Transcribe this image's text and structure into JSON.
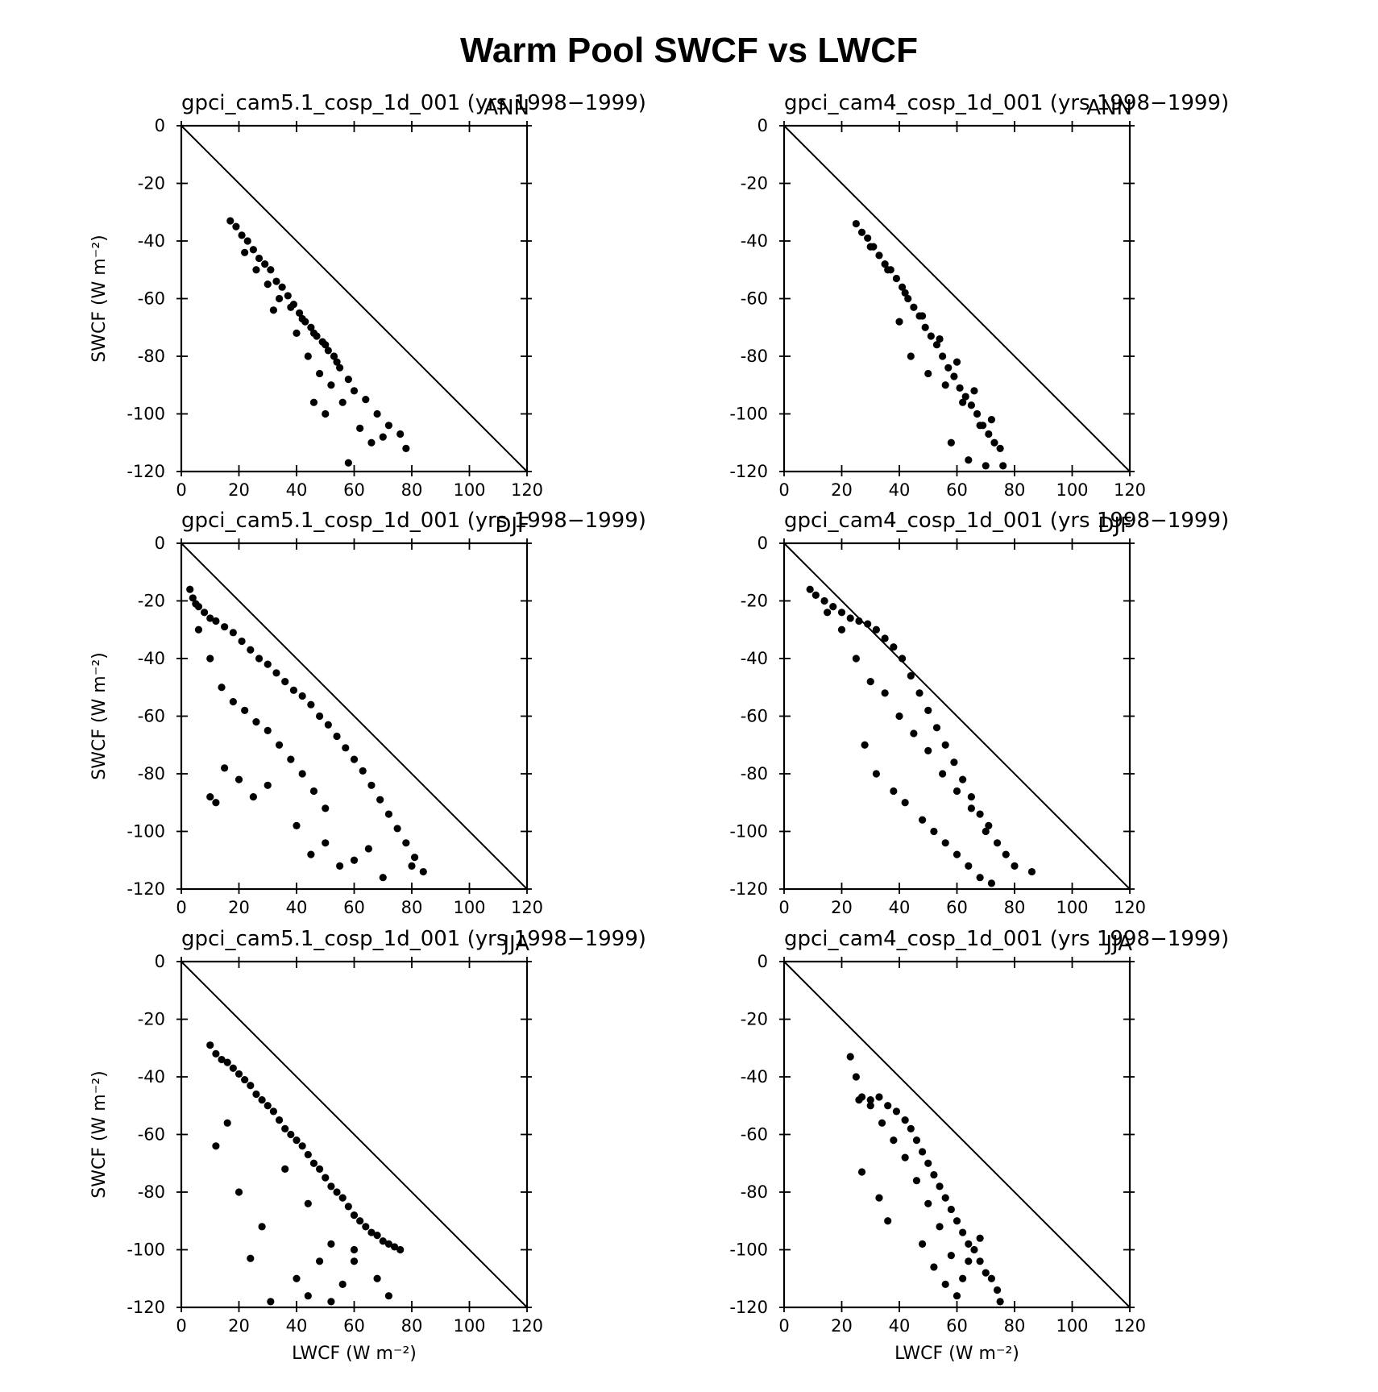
{
  "title": "Warm Pool SWCF vs LWCF",
  "chart_data": [
    {
      "type": "scatter",
      "title": "gpci_cam5.1_cosp_1d_001 (yrs 1998−1999)",
      "season": "ANN",
      "ylabel": "SWCF (W m⁻²)",
      "xlim": [
        0,
        120
      ],
      "ylim": [
        -120,
        0
      ],
      "xticks": [
        0,
        20,
        40,
        60,
        80,
        100,
        120
      ],
      "yticks": [
        0,
        -20,
        -40,
        -60,
        -80,
        -100,
        -120
      ],
      "color": "#000000",
      "x": [
        17,
        19,
        21,
        23,
        25,
        27,
        29,
        31,
        33,
        35,
        37,
        39,
        41,
        43,
        45,
        47,
        49,
        51,
        53,
        55,
        22,
        26,
        30,
        34,
        38,
        42,
        46,
        50,
        54,
        58,
        32,
        40,
        44,
        48,
        52,
        56,
        60,
        64,
        68,
        72,
        76,
        78,
        46,
        50,
        62,
        66,
        70,
        58
      ],
      "y": [
        -33,
        -35,
        -38,
        -40,
        -43,
        -46,
        -48,
        -50,
        -54,
        -56,
        -59,
        -62,
        -65,
        -68,
        -70,
        -73,
        -75,
        -78,
        -80,
        -84,
        -44,
        -50,
        -55,
        -60,
        -63,
        -67,
        -72,
        -76,
        -82,
        -88,
        -64,
        -72,
        -80,
        -86,
        -90,
        -96,
        -92,
        -95,
        -100,
        -104,
        -107,
        -112,
        -96,
        -100,
        -105,
        -110,
        -108,
        -117
      ]
    },
    {
      "type": "scatter",
      "title": "gpci_cam4_cosp_1d_001 (yrs 1998−1999)",
      "season": "ANN",
      "xlim": [
        0,
        120
      ],
      "ylim": [
        -120,
        0
      ],
      "xticks": [
        0,
        20,
        40,
        60,
        80,
        100,
        120
      ],
      "yticks": [
        0,
        -20,
        -40,
        -60,
        -80,
        -100,
        -120
      ],
      "color": "#000000",
      "x": [
        25,
        27,
        29,
        31,
        33,
        35,
        37,
        39,
        41,
        43,
        45,
        47,
        49,
        51,
        53,
        55,
        57,
        59,
        61,
        63,
        65,
        67,
        69,
        71,
        73,
        75,
        30,
        36,
        42,
        48,
        54,
        60,
        66,
        72,
        40,
        44,
        50,
        56,
        62,
        68,
        58,
        64,
        70,
        76
      ],
      "y": [
        -34,
        -37,
        -39,
        -42,
        -45,
        -48,
        -50,
        -53,
        -56,
        -60,
        -63,
        -66,
        -70,
        -73,
        -76,
        -80,
        -84,
        -87,
        -91,
        -94,
        -97,
        -100,
        -104,
        -107,
        -110,
        -112,
        -42,
        -50,
        -58,
        -66,
        -74,
        -82,
        -92,
        -102,
        -68,
        -80,
        -86,
        -90,
        -96,
        -104,
        -110,
        -116,
        -118,
        -118
      ]
    },
    {
      "type": "scatter",
      "title": "gpci_cam5.1_cosp_1d_001 (yrs 1998−1999)",
      "season": "DJF",
      "ylabel": "SWCF (W m⁻²)",
      "xlim": [
        0,
        120
      ],
      "ylim": [
        -120,
        0
      ],
      "xticks": [
        0,
        20,
        40,
        60,
        80,
        100,
        120
      ],
      "yticks": [
        0,
        -20,
        -40,
        -60,
        -80,
        -100,
        -120
      ],
      "color": "#000000",
      "x": [
        3,
        4,
        5,
        6,
        8,
        10,
        12,
        15,
        18,
        21,
        24,
        27,
        30,
        33,
        36,
        39,
        42,
        45,
        48,
        51,
        54,
        57,
        60,
        63,
        66,
        69,
        72,
        75,
        78,
        81,
        84,
        6,
        10,
        14,
        18,
        22,
        26,
        30,
        34,
        38,
        42,
        46,
        50,
        10,
        12,
        15,
        20,
        25,
        30,
        40,
        45,
        50,
        55,
        60,
        65,
        70,
        80
      ],
      "y": [
        -16,
        -19,
        -21,
        -22,
        -24,
        -26,
        -27,
        -29,
        -31,
        -34,
        -37,
        -40,
        -42,
        -45,
        -48,
        -51,
        -53,
        -56,
        -60,
        -63,
        -67,
        -71,
        -75,
        -79,
        -84,
        -89,
        -94,
        -99,
        -104,
        -109,
        -114,
        -30,
        -40,
        -50,
        -55,
        -58,
        -62,
        -65,
        -70,
        -75,
        -80,
        -86,
        -92,
        -88,
        -90,
        -78,
        -82,
        -88,
        -84,
        -98,
        -108,
        -104,
        -112,
        -110,
        -106,
        -116,
        -112
      ]
    },
    {
      "type": "scatter",
      "title": "gpci_cam4_cosp_1d_001 (yrs 1998−1999)",
      "season": "DJF",
      "xlim": [
        0,
        120
      ],
      "ylim": [
        -120,
        0
      ],
      "xticks": [
        0,
        20,
        40,
        60,
        80,
        100,
        120
      ],
      "yticks": [
        0,
        -20,
        -40,
        -60,
        -80,
        -100,
        -120
      ],
      "color": "#000000",
      "x": [
        9,
        11,
        14,
        17,
        20,
        23,
        26,
        29,
        32,
        35,
        38,
        41,
        44,
        47,
        50,
        53,
        56,
        59,
        62,
        65,
        68,
        71,
        74,
        77,
        80,
        86,
        15,
        20,
        25,
        30,
        35,
        40,
        45,
        50,
        55,
        60,
        65,
        70,
        28,
        32,
        38,
        42,
        48,
        52,
        56,
        60,
        64,
        68,
        72
      ],
      "y": [
        -16,
        -18,
        -20,
        -22,
        -24,
        -26,
        -27,
        -28,
        -30,
        -33,
        -36,
        -40,
        -46,
        -52,
        -58,
        -64,
        -70,
        -76,
        -82,
        -88,
        -94,
        -98,
        -104,
        -108,
        -112,
        -114,
        -24,
        -30,
        -40,
        -48,
        -52,
        -60,
        -66,
        -72,
        -80,
        -86,
        -92,
        -100,
        -70,
        -80,
        -86,
        -90,
        -96,
        -100,
        -104,
        -108,
        -112,
        -116,
        -118
      ]
    },
    {
      "type": "scatter",
      "title": "gpci_cam5.1_cosp_1d_001 (yrs 1998−1999)",
      "season": "JJA",
      "ylabel": "SWCF (W m⁻²)",
      "xlabel": "LWCF (W m⁻²)",
      "xlim": [
        0,
        120
      ],
      "ylim": [
        -120,
        0
      ],
      "xticks": [
        0,
        20,
        40,
        60,
        80,
        100,
        120
      ],
      "yticks": [
        0,
        -20,
        -40,
        -60,
        -80,
        -100,
        -120
      ],
      "color": "#000000",
      "x": [
        10,
        12,
        14,
        16,
        18,
        20,
        22,
        24,
        26,
        28,
        30,
        32,
        34,
        36,
        38,
        40,
        42,
        44,
        46,
        48,
        50,
        52,
        54,
        56,
        58,
        60,
        62,
        64,
        66,
        68,
        70,
        72,
        74,
        76,
        12,
        16,
        20,
        24,
        28,
        36,
        44,
        52,
        60,
        68,
        40,
        44,
        48,
        52,
        56,
        60,
        72,
        31
      ],
      "y": [
        -29,
        -32,
        -34,
        -35,
        -37,
        -39,
        -41,
        -43,
        -46,
        -48,
        -50,
        -52,
        -55,
        -58,
        -60,
        -62,
        -64,
        -67,
        -70,
        -72,
        -75,
        -78,
        -80,
        -82,
        -85,
        -88,
        -90,
        -92,
        -94,
        -95,
        -97,
        -98,
        -99,
        -100,
        -64,
        -56,
        -80,
        -103,
        -92,
        -72,
        -84,
        -98,
        -104,
        -110,
        -110,
        -116,
        -104,
        -118,
        -112,
        -100,
        -116,
        -118
      ]
    },
    {
      "type": "scatter",
      "title": "gpci_cam4_cosp_1d_001 (yrs 1998−1999)",
      "season": "JJA",
      "xlabel": "LWCF (W m⁻²)",
      "xlim": [
        0,
        120
      ],
      "ylim": [
        -120,
        0
      ],
      "xticks": [
        0,
        20,
        40,
        60,
        80,
        100,
        120
      ],
      "yticks": [
        0,
        -20,
        -40,
        -60,
        -80,
        -100,
        -120
      ],
      "color": "#000000",
      "x": [
        23,
        25,
        27,
        30,
        33,
        36,
        39,
        42,
        44,
        46,
        48,
        50,
        52,
        54,
        56,
        58,
        60,
        62,
        64,
        66,
        68,
        70,
        72,
        74,
        75,
        26,
        30,
        34,
        38,
        42,
        46,
        50,
        54,
        58,
        62,
        27,
        33,
        36,
        48,
        52,
        56,
        60,
        64,
        68
      ],
      "y": [
        -33,
        -40,
        -47,
        -48,
        -47,
        -50,
        -52,
        -55,
        -58,
        -62,
        -66,
        -70,
        -74,
        -78,
        -82,
        -86,
        -90,
        -94,
        -98,
        -100,
        -104,
        -108,
        -110,
        -114,
        -118,
        -48,
        -50,
        -56,
        -62,
        -68,
        -76,
        -84,
        -92,
        -102,
        -110,
        -73,
        -82,
        -90,
        -98,
        -106,
        -112,
        -116,
        -104,
        -96
      ]
    }
  ]
}
